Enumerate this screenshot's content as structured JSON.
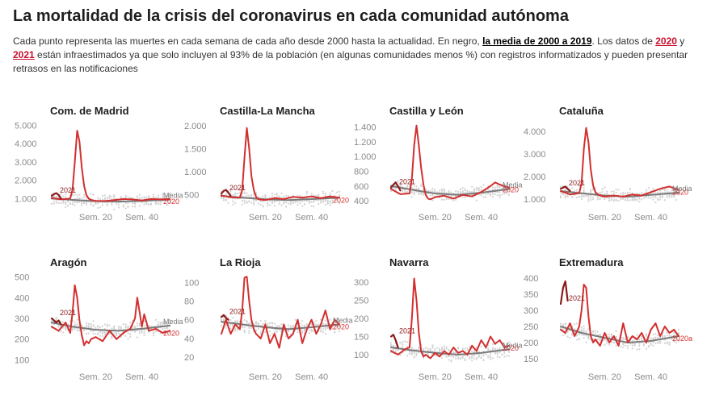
{
  "title": "La mortalidad de la crisis del coronavirus en cada comunidad autónoma",
  "subtitle": {
    "part1": "Cada punto representa las muertes en cada semana de cada año desde 2000 hasta la actualidad. En negro, ",
    "media_link": "la media de 2000 a 2019",
    "part2": ". Los datos de ",
    "y2020": "2020",
    "part3": " y ",
    "y2021": "2021",
    "part4": " están infraestimados ya que solo incluyen al 93% de la población (en algunas comunidades menos %) con registros informatizados y pueden presentar retrasos en las notificaciones"
  },
  "colors": {
    "red_2020": "#d32f2f",
    "red_2021": "#8b1a1a",
    "media": "#7a7a7a",
    "dots": "#d3d3d3",
    "title": "#1e1e1e",
    "ticks": "#8a8a8a"
  },
  "chart_data": [
    {
      "type": "line",
      "title": "Com. de Madrid",
      "x_ticks": [
        "Sem. 20",
        "Sem. 40"
      ],
      "y_ticks": [
        "1.000",
        "2.000",
        "3.000",
        "4.000",
        "5.000"
      ],
      "y_tick_values": [
        1000,
        2000,
        3000,
        4000,
        5000
      ],
      "ylim": [
        800,
        5100
      ],
      "xlim": [
        1,
        52
      ],
      "labels": {
        "y2021": "2021",
        "y2020": "2020",
        "media": "Media"
      },
      "series": [
        {
          "name": "Media",
          "x": [
            1,
            10,
            20,
            30,
            40,
            52
          ],
          "y": [
            1000,
            930,
            860,
            840,
            880,
            950
          ]
        },
        {
          "name": "2020",
          "x": [
            1,
            5,
            9,
            10,
            11,
            12,
            13,
            14,
            15,
            16,
            17,
            18,
            20,
            24,
            28,
            32,
            36,
            40,
            44,
            48,
            52
          ],
          "y": [
            1050,
            960,
            1000,
            1500,
            3000,
            4700,
            4100,
            2700,
            1700,
            1200,
            1000,
            930,
            880,
            870,
            920,
            980,
            960,
            900,
            980,
            960,
            980
          ]
        },
        {
          "name": "2021",
          "x": [
            1,
            2,
            3,
            4,
            5
          ],
          "y": [
            1150,
            1250,
            1300,
            1200,
            1000
          ]
        }
      ]
    },
    {
      "type": "line",
      "title": "Castilla-La Mancha",
      "x_ticks": [
        "Sem. 20",
        "Sem. 40"
      ],
      "y_ticks": [
        "500",
        "1.000",
        "1.500",
        "2.000"
      ],
      "y_tick_values": [
        500,
        1000,
        1500,
        2000
      ],
      "ylim": [
        330,
        2050
      ],
      "xlim": [
        1,
        52
      ],
      "labels": {
        "y2021": "2021",
        "y2020": "2020"
      },
      "series": [
        {
          "name": "Media",
          "x": [
            1,
            10,
            20,
            30,
            40,
            52
          ],
          "y": [
            470,
            430,
            395,
            380,
            400,
            430
          ]
        },
        {
          "name": "2020",
          "x": [
            1,
            5,
            9,
            10,
            11,
            12,
            13,
            14,
            15,
            16,
            17,
            18,
            20,
            24,
            28,
            32,
            36,
            40,
            44,
            48,
            52
          ],
          "y": [
            480,
            440,
            430,
            600,
            1300,
            1950,
            1500,
            900,
            600,
            450,
            400,
            390,
            380,
            420,
            400,
            450,
            430,
            460,
            420,
            460,
            430
          ]
        },
        {
          "name": "2021",
          "x": [
            1,
            2,
            3,
            4,
            5
          ],
          "y": [
            520,
            580,
            600,
            540,
            470
          ]
        }
      ]
    },
    {
      "type": "line",
      "title": "Castilla y León",
      "x_ticks": [
        "Sem. 20",
        "Sem. 40"
      ],
      "y_ticks": [
        "400",
        "600",
        "800",
        "1.000",
        "1.200",
        "1.400"
      ],
      "y_tick_values": [
        400,
        600,
        800,
        1000,
        1200,
        1400
      ],
      "ylim": [
        380,
        1450
      ],
      "xlim": [
        1,
        52
      ],
      "labels": {
        "y2021": "2021",
        "y2020": "2020",
        "media": "Media"
      },
      "series": [
        {
          "name": "Media",
          "x": [
            1,
            10,
            20,
            30,
            40,
            52
          ],
          "y": [
            600,
            550,
            500,
            480,
            510,
            560
          ]
        },
        {
          "name": "2020",
          "x": [
            1,
            5,
            9,
            10,
            11,
            12,
            13,
            14,
            15,
            16,
            17,
            18,
            20,
            24,
            28,
            32,
            36,
            40,
            44,
            46,
            48,
            50,
            52
          ],
          "y": [
            560,
            490,
            500,
            700,
            1150,
            1420,
            1150,
            850,
            620,
            480,
            430,
            420,
            450,
            470,
            430,
            480,
            460,
            520,
            600,
            650,
            620,
            600,
            580
          ]
        },
        {
          "name": "2021",
          "x": [
            1,
            2,
            3,
            4,
            5
          ],
          "y": [
            580,
            620,
            650,
            600,
            540
          ]
        }
      ]
    },
    {
      "type": "line",
      "title": "Cataluña",
      "x_ticks": [
        "Sem. 20",
        "Sem. 40"
      ],
      "y_ticks": [
        "1.000",
        "2.000",
        "3.000",
        "4.000"
      ],
      "y_tick_values": [
        1000,
        2000,
        3000,
        4000
      ],
      "ylim": [
        850,
        4350
      ],
      "xlim": [
        1,
        52
      ],
      "labels": {
        "y2021": "2021",
        "y2020": "2020",
        "media": "Media"
      },
      "series": [
        {
          "name": "Media",
          "x": [
            1,
            10,
            20,
            30,
            40,
            52
          ],
          "y": [
            1350,
            1250,
            1150,
            1100,
            1180,
            1280
          ]
        },
        {
          "name": "2020",
          "x": [
            1,
            5,
            9,
            10,
            11,
            12,
            13,
            14,
            15,
            16,
            17,
            18,
            20,
            24,
            28,
            32,
            36,
            40,
            44,
            48,
            52
          ],
          "y": [
            1350,
            1200,
            1250,
            1700,
            3200,
            4150,
            3500,
            2300,
            1600,
            1300,
            1200,
            1150,
            1100,
            1150,
            1100,
            1200,
            1150,
            1300,
            1450,
            1550,
            1400
          ]
        },
        {
          "name": "2021",
          "x": [
            1,
            2,
            3,
            4,
            5
          ],
          "y": [
            1450,
            1500,
            1550,
            1450,
            1350
          ]
        }
      ]
    },
    {
      "type": "line",
      "title": "Aragón",
      "x_ticks": [
        "Sem. 20",
        "Sem. 40"
      ],
      "y_ticks": [
        "100",
        "200",
        "300",
        "400",
        "500"
      ],
      "y_tick_values": [
        100,
        200,
        300,
        400,
        500
      ],
      "ylim": [
        90,
        510
      ],
      "xlim": [
        1,
        52
      ],
      "labels": {
        "y2021": "2021",
        "y2020": "2020",
        "media": "Media"
      },
      "series": [
        {
          "name": "Media",
          "x": [
            1,
            10,
            20,
            30,
            40,
            52
          ],
          "y": [
            280,
            260,
            245,
            240,
            250,
            265
          ]
        },
        {
          "name": "2020",
          "x": [
            1,
            4,
            7,
            9,
            10,
            11,
            12,
            13,
            14,
            15,
            16,
            17,
            18,
            20,
            23,
            26,
            29,
            32,
            35,
            37,
            38,
            39,
            40,
            41,
            43,
            46,
            49,
            52
          ],
          "y": [
            260,
            240,
            280,
            230,
            330,
            460,
            400,
            290,
            220,
            170,
            190,
            180,
            200,
            210,
            190,
            240,
            200,
            230,
            250,
            300,
            400,
            330,
            260,
            320,
            240,
            250,
            230,
            240
          ]
        },
        {
          "name": "2021",
          "x": [
            1,
            2,
            3,
            4,
            5
          ],
          "y": [
            300,
            290,
            280,
            290,
            270
          ]
        }
      ]
    },
    {
      "type": "line",
      "title": "La Rioja",
      "x_ticks": [
        "Sem. 20",
        "Sem. 40"
      ],
      "y_ticks": [
        "20",
        "40",
        "60",
        "80",
        "100"
      ],
      "y_tick_values": [
        20,
        40,
        60,
        80,
        100
      ],
      "ylim": [
        15,
        108
      ],
      "xlim": [
        1,
        52
      ],
      "labels": {
        "y2021": "2021",
        "y2020": "2020",
        "media": "Media"
      },
      "series": [
        {
          "name": "Media",
          "x": [
            1,
            10,
            20,
            30,
            40,
            52
          ],
          "y": [
            58,
            55,
            52,
            50,
            52,
            55
          ]
        },
        {
          "name": "2020",
          "x": [
            1,
            3,
            5,
            7,
            9,
            10,
            11,
            12,
            13,
            14,
            15,
            16,
            18,
            20,
            22,
            24,
            26,
            28,
            30,
            32,
            34,
            36,
            38,
            40,
            42,
            44,
            46,
            48,
            50,
            52
          ],
          "y": [
            45,
            60,
            45,
            55,
            50,
            70,
            105,
            106,
            80,
            60,
            50,
            45,
            40,
            55,
            35,
            45,
            30,
            55,
            40,
            45,
            60,
            35,
            50,
            60,
            45,
            55,
            70,
            50,
            60,
            55
          ]
        },
        {
          "name": "2021",
          "x": [
            1,
            2,
            3,
            4
          ],
          "y": [
            63,
            65,
            62,
            60
          ]
        }
      ]
    },
    {
      "type": "line",
      "title": "Navarra",
      "x_ticks": [
        "Sem. 20",
        "Sem. 40"
      ],
      "y_ticks": [
        "100",
        "150",
        "200",
        "250",
        "300"
      ],
      "y_tick_values": [
        100,
        150,
        200,
        250,
        300
      ],
      "ylim": [
        80,
        320
      ],
      "xlim": [
        1,
        52
      ],
      "labels": {
        "y2021": "2021",
        "y2020": "2020",
        "media": "Media"
      },
      "series": [
        {
          "name": "Media",
          "x": [
            1,
            10,
            20,
            30,
            40,
            52
          ],
          "y": [
            120,
            112,
            105,
            100,
            105,
            115
          ]
        },
        {
          "name": "2020",
          "x": [
            1,
            4,
            7,
            9,
            10,
            11,
            12,
            13,
            14,
            15,
            16,
            18,
            20,
            22,
            24,
            26,
            28,
            30,
            32,
            34,
            36,
            38,
            40,
            42,
            44,
            46,
            48,
            50,
            52
          ],
          "y": [
            110,
            100,
            115,
            120,
            200,
            310,
            250,
            160,
            110,
            95,
            100,
            90,
            105,
            95,
            110,
            100,
            120,
            105,
            110,
            100,
            125,
            110,
            140,
            120,
            150,
            130,
            140,
            120,
            125
          ]
        },
        {
          "name": "2021",
          "x": [
            1,
            2,
            3,
            4
          ],
          "y": [
            150,
            155,
            140,
            120
          ]
        }
      ]
    },
    {
      "type": "line",
      "title": "Extremadura",
      "x_ticks": [
        "Sem. 20",
        "Sem. 40"
      ],
      "y_ticks": [
        "150",
        "200",
        "250",
        "300",
        "350",
        "400"
      ],
      "y_tick_values": [
        150,
        200,
        250,
        300,
        350,
        400
      ],
      "ylim": [
        140,
        410
      ],
      "xlim": [
        1,
        52
      ],
      "labels": {
        "y2021": "2021",
        "y2020": "2020a"
      },
      "series": [
        {
          "name": "Media",
          "x": [
            1,
            10,
            20,
            30,
            40,
            52
          ],
          "y": [
            250,
            230,
            215,
            200,
            205,
            220
          ]
        },
        {
          "name": "2020",
          "x": [
            1,
            3,
            5,
            7,
            9,
            10,
            11,
            12,
            13,
            14,
            15,
            16,
            18,
            20,
            22,
            24,
            26,
            28,
            30,
            32,
            34,
            36,
            38,
            40,
            42,
            44,
            46,
            48,
            50,
            52
          ],
          "y": [
            240,
            230,
            260,
            220,
            250,
            300,
            380,
            370,
            280,
            220,
            200,
            210,
            190,
            230,
            200,
            220,
            190,
            260,
            200,
            220,
            210,
            230,
            200,
            240,
            260,
            220,
            250,
            230,
            240,
            220
          ]
        },
        {
          "name": "2021",
          "x": [
            1,
            2,
            3,
            4
          ],
          "y": [
            320,
            370,
            390,
            330
          ]
        }
      ]
    }
  ]
}
